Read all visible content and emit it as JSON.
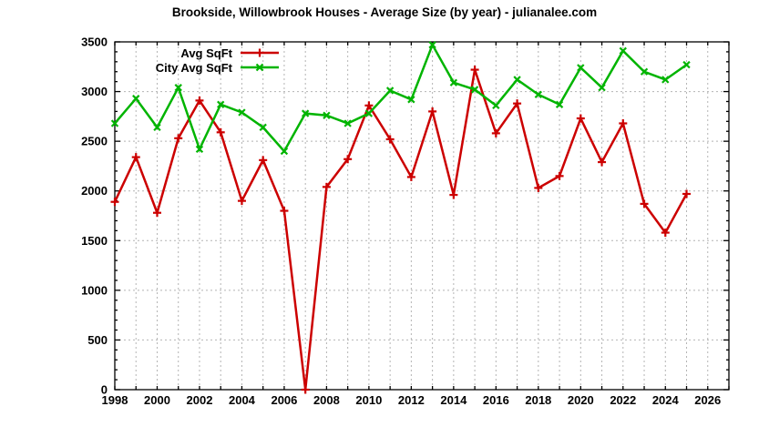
{
  "title": "Brookside, Willowbrook Houses - Average Size (by year) - julianalee.com",
  "chart_data": {
    "type": "line",
    "title": "Brookside, Willowbrook Houses - Average Size (by year) - julianalee.com",
    "x": [
      1998,
      1999,
      2000,
      2001,
      2002,
      2003,
      2004,
      2005,
      2006,
      2007,
      2008,
      2009,
      2010,
      2011,
      2012,
      2013,
      2014,
      2015,
      2016,
      2017,
      2018,
      2019,
      2020,
      2021,
      2022,
      2023,
      2024,
      2025
    ],
    "series": [
      {
        "name": "Avg SqFt",
        "color": "#cc0000",
        "marker": "plus",
        "values": [
          1890,
          2340,
          1780,
          2530,
          2910,
          2590,
          1900,
          2310,
          1800,
          0,
          2040,
          2320,
          2860,
          2520,
          2140,
          2800,
          1960,
          3220,
          2580,
          2880,
          2030,
          2150,
          2730,
          2290,
          2680,
          1870,
          1580,
          1970
        ]
      },
      {
        "name": "City Avg SqFt",
        "color": "#00b400",
        "marker": "cross",
        "values": [
          2680,
          2930,
          2640,
          3040,
          2420,
          2870,
          2790,
          2640,
          2400,
          2780,
          2760,
          2680,
          2780,
          3010,
          2920,
          3470,
          3090,
          3020,
          2860,
          3120,
          2970,
          2870,
          3240,
          3040,
          3410,
          3200,
          3120,
          3270
        ]
      }
    ],
    "xlabel": "",
    "ylabel": "",
    "xlim": [
      1998,
      2027
    ],
    "ylim": [
      0,
      3500
    ],
    "xticks": [
      1998,
      2000,
      2002,
      2004,
      2006,
      2008,
      2010,
      2012,
      2014,
      2016,
      2018,
      2020,
      2022,
      2024,
      2026
    ],
    "x_grid_every": 1,
    "ytick_step": 500,
    "y_minor_step": 100,
    "grid": true,
    "legend_position": "top-left",
    "axis_color": "#000000",
    "grid_color": "#b4b4b4",
    "tick_label_color": "#000000",
    "background": "#ffffff"
  }
}
